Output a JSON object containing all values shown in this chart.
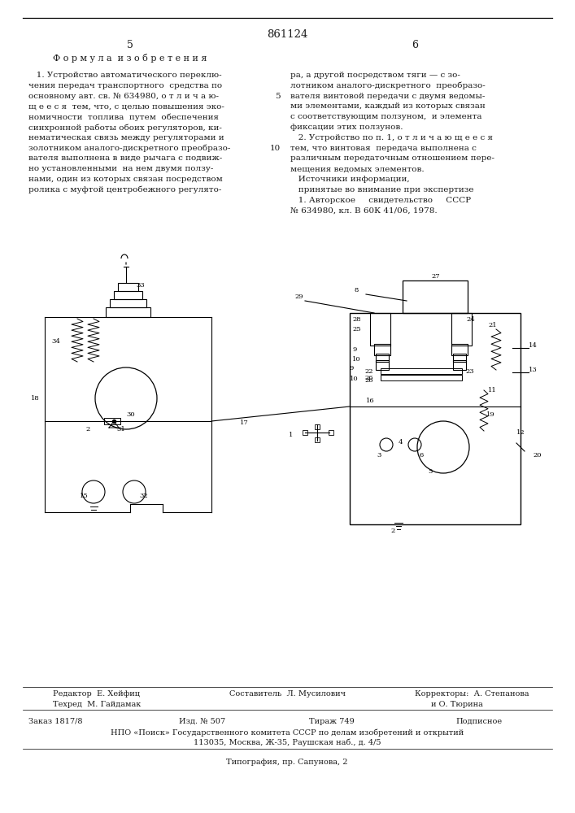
{
  "patent_number": "861124",
  "page_left": "5",
  "page_right": "6",
  "section_title": "Ф о р м у л а  и з о б р е т е н и я",
  "col_left_text": [
    "   1. Устройство автоматического переклю-",
    "чения передач транспортного  средства по",
    "основному авт. св. № 634980, о т л и ч а ю-",
    "щ е е с я  тем, что, с целью повышения эко-",
    "номичности  топлива  путем  обеспечения",
    "синхронной работы обоих регуляторов, ки-",
    "нематическая связь между регуляторами и",
    "золотником аналого-дискретного преобразо-",
    "вателя выполнена в виде рычага с подвиж-",
    "но установленными  на нем двумя ползу-",
    "нами, один из которых связан посредством",
    "ролика с муфтой центробежного регулято-"
  ],
  "col_right_text": [
    "ра, а другой посредством тяги — с зо-",
    "лотником аналого-дискретного  преобразо-",
    "вателя винтовой передачи с двумя ведомы-",
    "ми элементами, каждый из которых связан",
    "с соответствующим ползуном,  и элемента",
    "фиксации этих ползунов.",
    "   2. Устройство по п. 1, о т л и ч а ю щ е е с я",
    "тем, что винтовая  передача выполнена с",
    "различным передаточным отношением пере-",
    "мещения ведомых элементов.",
    "   Источники информации,",
    "   принятые во внимание при экспертизе",
    "   1. Авторское     свидетельство     СССР",
    "№ 634980, кл. В 60К 41/06, 1978."
  ],
  "line_num_5_row": 2,
  "line_num_10_row": 7,
  "footer_editor": "Редактор  Е. Хейфиц",
  "footer_compiler": "Составитель  Л. Мусилович",
  "footer_tech": "Техред  М. Гайдамак",
  "footer_correctors": "Корректоры:  А. Степанова",
  "footer_correctors2": "и О. Тюрина",
  "footer_order": "Заказ 1817/8",
  "footer_issue": "Изд. № 507",
  "footer_circulation": "Тираж 749",
  "footer_subscription": "Подписное",
  "footer_npo": "НПО «Поиск» Государственного комитета СССР по делам изобретений и открытий",
  "footer_address": "113035, Москва, Ж-35, Раушская наб., д. 4/5",
  "footer_typography": "Типография, пр. Сапунова, 2",
  "bg_color": "#ffffff",
  "text_color": "#1a1a1a"
}
